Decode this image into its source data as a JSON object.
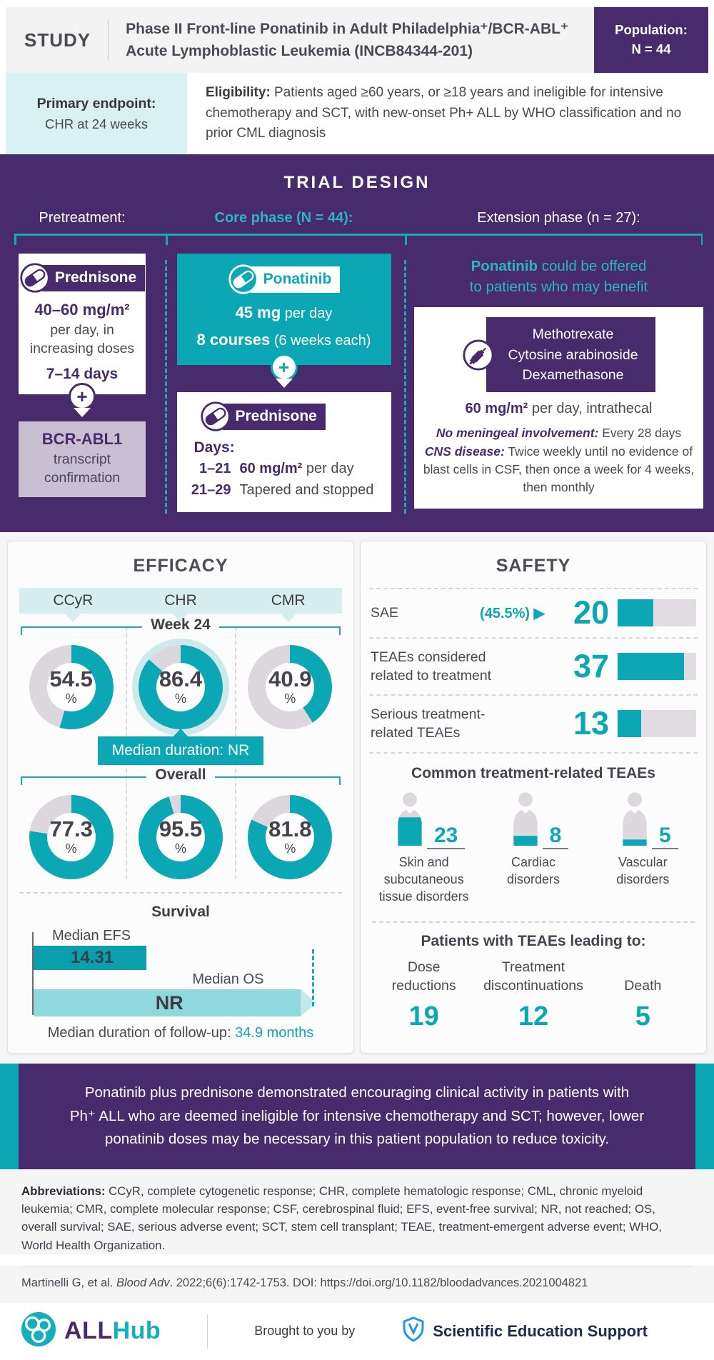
{
  "colors": {
    "teal": "#0ba7b5",
    "purple": "#472b6d",
    "gray_track": "#dcd7dd"
  },
  "icons": {
    "plus": "+",
    "arrow_right": "▶"
  },
  "header": {
    "study_label": "STUDY",
    "title_line1": "Phase II Front-line Ponatinib in Adult Philadelphia⁺/BCR-ABL⁺",
    "title_line2": "Acute Lymphoblastic Leukemia (INCB84344-201)",
    "population_label": "Population:",
    "population_value": "N = 44",
    "primary_endpoint_label": "Primary endpoint:",
    "primary_endpoint_value": "CHR at 24 weeks",
    "eligibility_label": "Eligibility:",
    "eligibility_text": " Patients aged ≥60 years, or ≥18 years and ineligible for intensive chemotherapy and SCT, with new-onset Ph+ ALL by WHO classification and no prior CML diagnosis"
  },
  "trial_design": {
    "title": "TRIAL DESIGN",
    "pretreatment": {
      "header": "Pretreatment:",
      "drug": "Prednisone",
      "dose": "40–60 mg/m²",
      "dose_note1": "per day, in",
      "dose_note2": "increasing doses",
      "duration": "7–14 days",
      "confirm_title": "BCR-ABL1",
      "confirm_line1": "transcript",
      "confirm_line2": "confirmation"
    },
    "core": {
      "header": "Core phase (N = 44):",
      "drug": "Ponatinib",
      "dose_bold": "45 mg",
      "dose_rest": " per day",
      "courses_bold": "8 courses",
      "courses_rest": " (6 weeks each)",
      "drug2": "Prednisone",
      "days_label": "Days:",
      "row1_days": "1–21",
      "row1_dose_bold": "60 mg/m²",
      "row1_dose_rest": " per day",
      "row2_days": "21–29",
      "row2_text": "Tapered and stopped"
    },
    "extension": {
      "header": "Extension phase (n = 27):",
      "offer_bold": "Ponatinib",
      "offer_rest": " could be offered",
      "offer_line2": "to patients who may benefit",
      "drug1": "Methotrexate",
      "drug2": "Cytosine arabinoside",
      "drug3": "Dexamethasone",
      "dose_bold": "60 mg/m²",
      "dose_rest": "  per day, intrathecal",
      "note1_bold": "No meningeal involvement:",
      "note1_rest": " Every 28 days",
      "note2_bold": "CNS disease:",
      "note2_rest": " Twice weekly until no evidence of blast cells in CSF, then once a week for 4 weeks, then monthly"
    }
  },
  "efficacy": {
    "title": "EFFICACY",
    "measures": [
      "CCyR",
      "CHR",
      "CMR"
    ],
    "week24_label": "Week 24",
    "week24_values": [
      54.5,
      86.4,
      40.9
    ],
    "percent_sign": "%",
    "median_duration_chip": "Median duration: NR",
    "overall_label": "Overall",
    "overall_values": [
      77.3,
      95.5,
      81.8
    ],
    "survival_title": "Survival",
    "efs_label": "Median EFS",
    "efs_value": "14.31",
    "os_label": "Median OS",
    "os_value": "NR",
    "followup_label": "Median duration of follow-up: ",
    "followup_value": "34.9 months"
  },
  "safety": {
    "title": "SAFETY",
    "n_total": 44,
    "rows": [
      {
        "label1": "SAE",
        "label2": "",
        "pct": "(45.5%) ▶",
        "value": 20
      },
      {
        "label1": "TEAEs considered",
        "label2": "related to treatment",
        "pct": "",
        "value": 37
      },
      {
        "label1": "Serious treatment-",
        "label2": "related TEAEs",
        "pct": "",
        "value": 13
      }
    ],
    "common_title": "Common treatment-related TEAEs",
    "common": [
      {
        "value": 23,
        "lines": [
          "Skin and",
          "subcutaneous",
          "tissue disorders"
        ]
      },
      {
        "value": 8,
        "lines": [
          "Cardiac",
          "disorders"
        ]
      },
      {
        "value": 5,
        "lines": [
          "Vascular",
          "disorders"
        ]
      }
    ],
    "leading_title": "Patients with TEAEs leading to:",
    "leading": [
      {
        "lines": [
          "Dose",
          "reductions"
        ],
        "value": 19
      },
      {
        "lines": [
          "Treatment",
          "discontinuations"
        ],
        "value": 12
      },
      {
        "lines": [
          "Death"
        ],
        "value": 5
      }
    ]
  },
  "conclusion": {
    "line1": "Ponatinib plus prednisone demonstrated encouraging clinical activity in patients with",
    "line2": "Ph⁺ ALL who are deemed ineligible for intensive chemotherapy and SCT; however, lower",
    "line3": "ponatinib doses may be necessary in this patient population to reduce toxicity."
  },
  "abbreviations": {
    "label": "Abbreviations:",
    "text": " CCyR, complete cytogenetic response; CHR, complete hematologic response; CML, chronic myeloid leukemia; CMR, complete molecular response; CSF, cerebrospinal fluid; EFS, event-free survival; NR, not reached; OS, overall survival; SAE, serious adverse event; SCT, stem cell transplant; TEAE, treatment-emergent adverse event; WHO, World Health Organization."
  },
  "citation": {
    "pre": "Martinelli G, et al. ",
    "journal": "Blood Adv",
    "post": ". 2022;6(6):1742-1753. DOI: https://doi.org/10.1182/bloodadvances.2021004821"
  },
  "footer": {
    "logo_all": "ALL",
    "logo_hub": "Hub",
    "brought_by": "Brought to you by",
    "sponsor": "Scientific Education Support"
  },
  "chart_data": [
    {
      "type": "pie",
      "subtype": "donut-group",
      "title": "Week 24",
      "categories": [
        "CCyR",
        "CHR",
        "CMR"
      ],
      "values": [
        54.5,
        86.4,
        40.9
      ],
      "unit": "%",
      "annotation": "Median duration: NR"
    },
    {
      "type": "pie",
      "subtype": "donut-group",
      "title": "Overall",
      "categories": [
        "CCyR",
        "CHR",
        "CMR"
      ],
      "values": [
        77.3,
        95.5,
        81.8
      ],
      "unit": "%"
    },
    {
      "type": "bar",
      "title": "Survival (months)",
      "categories": [
        "Median EFS",
        "Median OS"
      ],
      "values": [
        14.31,
        null
      ],
      "labels": [
        "14.31",
        "NR"
      ],
      "note": "Median duration of follow-up: 34.9 months"
    },
    {
      "type": "bar",
      "title": "Safety events (of N = 44)",
      "categories": [
        "SAE",
        "TEAEs considered related to treatment",
        "Serious treatment-related TEAEs"
      ],
      "values": [
        20,
        37,
        13
      ],
      "xlim": [
        0,
        44
      ],
      "labels": [
        "20 (45.5%)",
        "37",
        "13"
      ]
    },
    {
      "type": "bar",
      "title": "Common treatment-related TEAEs",
      "categories": [
        "Skin and subcutaneous tissue disorders",
        "Cardiac disorders",
        "Vascular disorders"
      ],
      "values": [
        23,
        8,
        5
      ]
    },
    {
      "type": "bar",
      "title": "Patients with TEAEs leading to",
      "categories": [
        "Dose reductions",
        "Treatment discontinuations",
        "Death"
      ],
      "values": [
        19,
        12,
        5
      ]
    }
  ]
}
